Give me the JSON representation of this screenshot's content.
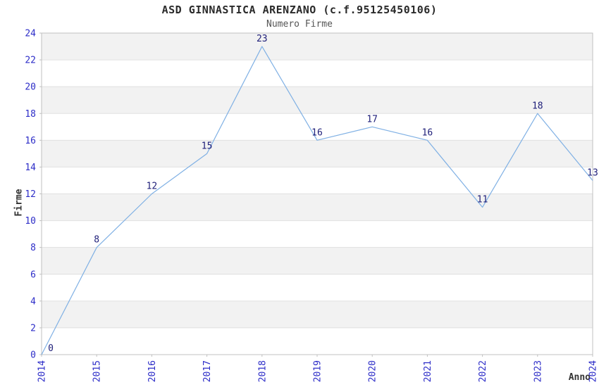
{
  "header": {
    "title": "ASD GINNASTICA ARENZANO (c.f.95125450106)",
    "subtitle": "Numero Firme"
  },
  "chart_data": {
    "type": "line",
    "title": "ASD GINNASTICA ARENZANO (c.f.95125450106)",
    "subtitle": "Numero Firme",
    "xlabel": "Anno",
    "ylabel": "Firme",
    "categories": [
      "2014",
      "2015",
      "2016",
      "2017",
      "2018",
      "2019",
      "2020",
      "2021",
      "2022",
      "2023",
      "2024"
    ],
    "values": [
      0,
      8,
      12,
      15,
      23,
      16,
      17,
      16,
      11,
      18,
      13
    ],
    "ylim": [
      0,
      24
    ],
    "ytick_step": 2,
    "xtick_rotation": -90,
    "grid": "horizontal-bands-every-2-units",
    "legend": "none",
    "point_markers": "none",
    "colors": {
      "line": "#7fb0e4",
      "band": "#f2f2f2",
      "grid": "#e0e0e0",
      "spine": "#c0c0c0",
      "tick_label": "#2d2dc8",
      "data_label": "#20207a",
      "title": "#2a2a2a",
      "subtitle": "#555555",
      "axis_title": "#333333",
      "background": "#ffffff"
    }
  }
}
